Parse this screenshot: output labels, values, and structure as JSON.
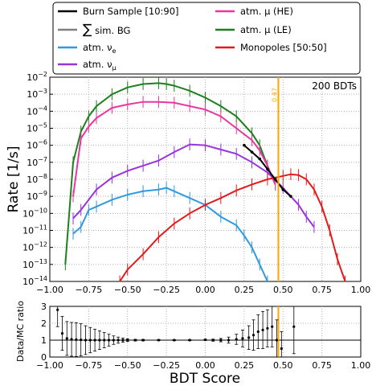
{
  "colors": {
    "burn": "#000000",
    "simbg": "#808080",
    "nue": "#3399dd",
    "numu": "#9933dd",
    "muhe": "#e8379e",
    "mule": "#1e7f1e",
    "mono": "#e31a1c",
    "cut": "#ffa500",
    "grid": "#b0b0b0"
  },
  "legend": {
    "burn": "Burn Sample [10:90]",
    "simbg_sym": "∑",
    "simbg": " sim. BG",
    "nue_base": "atm. ν",
    "nue_sub": "e",
    "numu_base": "atm. ν",
    "numu_sub": "μ",
    "muhe": "atm. μ (HE)",
    "mule": "atm. μ (LE)",
    "mono": "Monopoles [50:50]"
  },
  "chart_data": [
    {
      "type": "line",
      "annotation": "200 BDTs",
      "ylabel": "Rate [1/s]",
      "ylog": true,
      "ylim_exp": [
        -14,
        -2
      ],
      "xlim": [
        -1.0,
        1.0
      ],
      "xticks": [
        "−1.00",
        "−0.75",
        "−0.50",
        "−0.25",
        "0.00",
        "0.25",
        "0.50",
        "0.75",
        "1.00"
      ],
      "yticks_base": "10",
      "yticks_exp": [
        "-14",
        "-13",
        "-12",
        "-11",
        "-10",
        "-9",
        "-8",
        "-7",
        "-6",
        "-5",
        "-4",
        "-3",
        "-2"
      ],
      "grid": true,
      "cut_value": 0.47,
      "cut_label": "0.47",
      "series": [
        {
          "name": "atm. μ (LE)",
          "key": "mule",
          "x": [
            -0.9,
            -0.85,
            -0.8,
            -0.75,
            -0.7,
            -0.6,
            -0.5,
            -0.4,
            -0.3,
            -0.25,
            -0.2,
            -0.1,
            0.0,
            0.1,
            0.2,
            0.3,
            0.35,
            0.4,
            0.45
          ],
          "log10y": [
            -13,
            -7.0,
            -5.2,
            -4.3,
            -3.7,
            -3.0,
            -2.6,
            -2.4,
            -2.35,
            -2.4,
            -2.5,
            -2.8,
            -3.2,
            -3.7,
            -4.3,
            -5.3,
            -6.0,
            -7.2,
            -8.3
          ]
        },
        {
          "name": "atm. μ (HE)",
          "key": "muhe",
          "x": [
            -0.85,
            -0.8,
            -0.75,
            -0.7,
            -0.6,
            -0.5,
            -0.4,
            -0.3,
            -0.2,
            -0.1,
            0.0,
            0.1,
            0.2,
            0.3,
            0.35,
            0.4,
            0.45
          ],
          "log10y": [
            -9.0,
            -5.6,
            -4.9,
            -4.4,
            -3.8,
            -3.6,
            -3.45,
            -3.45,
            -3.5,
            -3.7,
            -3.9,
            -4.3,
            -5.0,
            -5.7,
            -6.3,
            -7.2,
            -8.3
          ]
        },
        {
          "name": "atm. ν_μ",
          "key": "numu",
          "x": [
            -0.85,
            -0.8,
            -0.7,
            -0.6,
            -0.5,
            -0.4,
            -0.3,
            -0.2,
            -0.1,
            0.0,
            0.1,
            0.2,
            0.3,
            0.4,
            0.5,
            0.6,
            0.65,
            0.7
          ],
          "log10y": [
            -10.3,
            -9.8,
            -8.6,
            -7.9,
            -7.5,
            -7.2,
            -6.9,
            -6.4,
            -5.95,
            -6.0,
            -6.25,
            -6.5,
            -7.0,
            -7.6,
            -8.5,
            -9.5,
            -10.2,
            -10.8
          ]
        },
        {
          "name": "atm. ν_e",
          "key": "nue",
          "x": [
            -0.85,
            -0.8,
            -0.75,
            -0.7,
            -0.6,
            -0.5,
            -0.4,
            -0.3,
            -0.25,
            -0.2,
            -0.1,
            0.0,
            0.1,
            0.2,
            0.25,
            0.3,
            0.35,
            0.4
          ],
          "log10y": [
            -11.2,
            -10.8,
            -9.8,
            -9.6,
            -9.2,
            -8.9,
            -8.7,
            -8.6,
            -8.5,
            -8.7,
            -9.1,
            -9.5,
            -10.2,
            -10.7,
            -11.3,
            -12.0,
            -13.0,
            -14.0
          ]
        },
        {
          "name": "Monopoles [50:50]",
          "key": "mono",
          "x": [
            -0.55,
            -0.5,
            -0.4,
            -0.3,
            -0.2,
            -0.1,
            0.0,
            0.1,
            0.2,
            0.3,
            0.4,
            0.5,
            0.55,
            0.6,
            0.65,
            0.7,
            0.75,
            0.8,
            0.85,
            0.9
          ],
          "log10y": [
            -14.0,
            -13.3,
            -12.4,
            -11.4,
            -10.6,
            -10.0,
            -9.5,
            -9.1,
            -8.65,
            -8.3,
            -8.0,
            -7.8,
            -7.7,
            -7.75,
            -8.0,
            -8.6,
            -9.6,
            -11.0,
            -12.7,
            -14.0
          ]
        },
        {
          "name": "Burn Sample [10:90]",
          "key": "burn",
          "x": [
            0.25,
            0.3,
            0.35,
            0.4,
            0.45,
            0.5,
            0.55
          ],
          "log10y": [
            -6.0,
            -6.4,
            -6.8,
            -7.4,
            -8.0,
            -8.6,
            -9.0
          ]
        }
      ]
    },
    {
      "type": "scatter",
      "xlabel": "BDT Score",
      "ylabel": "Data/MC ratio",
      "ylim": [
        0,
        3
      ],
      "xlim": [
        -1.0,
        1.0
      ],
      "xticks": [
        "−1.00",
        "−0.75",
        "−0.50",
        "−0.25",
        "0.00",
        "0.25",
        "0.50",
        "0.75",
        "1.00"
      ],
      "yticks": [
        "0",
        "1",
        "2",
        "3"
      ],
      "reference_line": 1,
      "points": [
        {
          "x": -0.95,
          "y": 2.8,
          "err": 1.0
        },
        {
          "x": -0.92,
          "y": 1.4,
          "err": 1.0
        },
        {
          "x": -0.89,
          "y": 1.1,
          "err": 1.0
        },
        {
          "x": -0.86,
          "y": 1.05,
          "err": 1.0
        },
        {
          "x": -0.83,
          "y": 1.03,
          "err": 1.0
        },
        {
          "x": -0.8,
          "y": 1.02,
          "err": 0.95
        },
        {
          "x": -0.77,
          "y": 1.0,
          "err": 0.85
        },
        {
          "x": -0.74,
          "y": 1.0,
          "err": 0.75
        },
        {
          "x": -0.71,
          "y": 1.0,
          "err": 0.65
        },
        {
          "x": -0.68,
          "y": 1.0,
          "err": 0.55
        },
        {
          "x": -0.65,
          "y": 1.0,
          "err": 0.45
        },
        {
          "x": -0.62,
          "y": 1.0,
          "err": 0.35
        },
        {
          "x": -0.59,
          "y": 1.0,
          "err": 0.25
        },
        {
          "x": -0.56,
          "y": 1.0,
          "err": 0.18
        },
        {
          "x": -0.53,
          "y": 1.0,
          "err": 0.12
        },
        {
          "x": -0.5,
          "y": 1.0,
          "err": 0.08
        },
        {
          "x": -0.45,
          "y": 1.0,
          "err": 0.05
        },
        {
          "x": -0.4,
          "y": 1.0,
          "err": 0.04
        },
        {
          "x": -0.3,
          "y": 1.0,
          "err": 0.03
        },
        {
          "x": -0.2,
          "y": 1.0,
          "err": 0.03
        },
        {
          "x": -0.1,
          "y": 1.0,
          "err": 0.03
        },
        {
          "x": 0.0,
          "y": 1.02,
          "err": 0.04
        },
        {
          "x": 0.05,
          "y": 1.0,
          "err": 0.06
        },
        {
          "x": 0.1,
          "y": 1.0,
          "err": 0.1
        },
        {
          "x": 0.15,
          "y": 1.0,
          "err": 0.18
        },
        {
          "x": 0.2,
          "y": 1.05,
          "err": 0.3
        },
        {
          "x": 0.24,
          "y": 1.1,
          "err": 0.5
        },
        {
          "x": 0.28,
          "y": 1.15,
          "err": 0.7
        },
        {
          "x": 0.31,
          "y": 1.3,
          "err": 0.9
        },
        {
          "x": 0.34,
          "y": 1.5,
          "err": 1.0
        },
        {
          "x": 0.37,
          "y": 1.6,
          "err": 1.1
        },
        {
          "x": 0.4,
          "y": 1.7,
          "err": 1.1
        },
        {
          "x": 0.43,
          "y": 1.8,
          "err": 1.2
        },
        {
          "x": 0.46,
          "y": 1.0,
          "err": 1.2
        },
        {
          "x": 0.49,
          "y": 0.5,
          "err": 1.0
        },
        {
          "x": 0.57,
          "y": 1.8,
          "err": 1.6
        }
      ]
    }
  ]
}
